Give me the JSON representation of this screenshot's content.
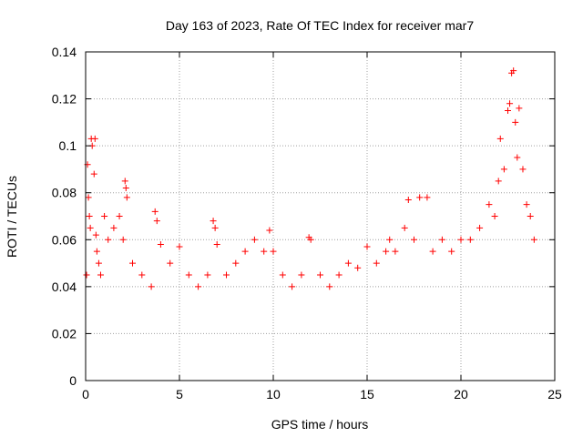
{
  "chart_data": {
    "type": "scatter",
    "title": "Day 163 of 2023, Rate Of TEC Index for receiver mar7",
    "xlabel": "GPS time / hours",
    "ylabel": "ROTI / TECUs",
    "xlim": [
      0,
      25
    ],
    "ylim": [
      0,
      0.14
    ],
    "xticks": [
      "0",
      "5",
      "10",
      "15",
      "20",
      "25"
    ],
    "yticks": [
      "0",
      "0.02",
      "0.04",
      "0.06",
      "0.08",
      "0.1",
      "0.12",
      "0.14"
    ],
    "grid": true,
    "marker": "+",
    "color": "#ff0000",
    "series": [
      {
        "values": [
          [
            0.05,
            0.045
          ],
          [
            0.1,
            0.092
          ],
          [
            0.15,
            0.078
          ],
          [
            0.2,
            0.07
          ],
          [
            0.25,
            0.065
          ],
          [
            0.3,
            0.103
          ],
          [
            0.35,
            0.1
          ],
          [
            0.45,
            0.088
          ],
          [
            0.5,
            0.103
          ],
          [
            0.55,
            0.062
          ],
          [
            0.6,
            0.055
          ],
          [
            0.7,
            0.05
          ],
          [
            0.8,
            0.045
          ],
          [
            1.0,
            0.07
          ],
          [
            1.2,
            0.06
          ],
          [
            1.5,
            0.065
          ],
          [
            1.8,
            0.07
          ],
          [
            2.0,
            0.06
          ],
          [
            2.1,
            0.085
          ],
          [
            2.15,
            0.082
          ],
          [
            2.2,
            0.078
          ],
          [
            2.5,
            0.05
          ],
          [
            3.0,
            0.045
          ],
          [
            3.5,
            0.04
          ],
          [
            3.7,
            0.072
          ],
          [
            3.8,
            0.068
          ],
          [
            4.0,
            0.058
          ],
          [
            4.5,
            0.05
          ],
          [
            5.0,
            0.057
          ],
          [
            5.5,
            0.045
          ],
          [
            6.0,
            0.04
          ],
          [
            6.5,
            0.045
          ],
          [
            6.8,
            0.068
          ],
          [
            6.9,
            0.065
          ],
          [
            7.0,
            0.058
          ],
          [
            7.5,
            0.045
          ],
          [
            8.0,
            0.05
          ],
          [
            8.5,
            0.055
          ],
          [
            9.0,
            0.06
          ],
          [
            9.5,
            0.055
          ],
          [
            9.8,
            0.064
          ],
          [
            10.0,
            0.055
          ],
          [
            10.5,
            0.045
          ],
          [
            11.0,
            0.04
          ],
          [
            11.5,
            0.045
          ],
          [
            11.9,
            0.061
          ],
          [
            12.0,
            0.06
          ],
          [
            12.5,
            0.045
          ],
          [
            13.0,
            0.04
          ],
          [
            13.5,
            0.045
          ],
          [
            14.0,
            0.05
          ],
          [
            14.5,
            0.048
          ],
          [
            15.0,
            0.057
          ],
          [
            15.5,
            0.05
          ],
          [
            16.0,
            0.055
          ],
          [
            16.2,
            0.06
          ],
          [
            16.5,
            0.055
          ],
          [
            17.0,
            0.065
          ],
          [
            17.2,
            0.077
          ],
          [
            17.5,
            0.06
          ],
          [
            17.8,
            0.078
          ],
          [
            18.2,
            0.078
          ],
          [
            18.5,
            0.055
          ],
          [
            19.0,
            0.06
          ],
          [
            19.5,
            0.055
          ],
          [
            20.0,
            0.06
          ],
          [
            20.5,
            0.06
          ],
          [
            21.0,
            0.065
          ],
          [
            21.5,
            0.075
          ],
          [
            21.8,
            0.07
          ],
          [
            22.0,
            0.085
          ],
          [
            22.1,
            0.103
          ],
          [
            22.3,
            0.09
          ],
          [
            22.5,
            0.115
          ],
          [
            22.6,
            0.118
          ],
          [
            22.7,
            0.131
          ],
          [
            22.8,
            0.132
          ],
          [
            22.9,
            0.11
          ],
          [
            23.0,
            0.095
          ],
          [
            23.1,
            0.116
          ],
          [
            23.3,
            0.09
          ],
          [
            23.5,
            0.075
          ],
          [
            23.7,
            0.07
          ],
          [
            23.9,
            0.06
          ]
        ]
      }
    ]
  }
}
